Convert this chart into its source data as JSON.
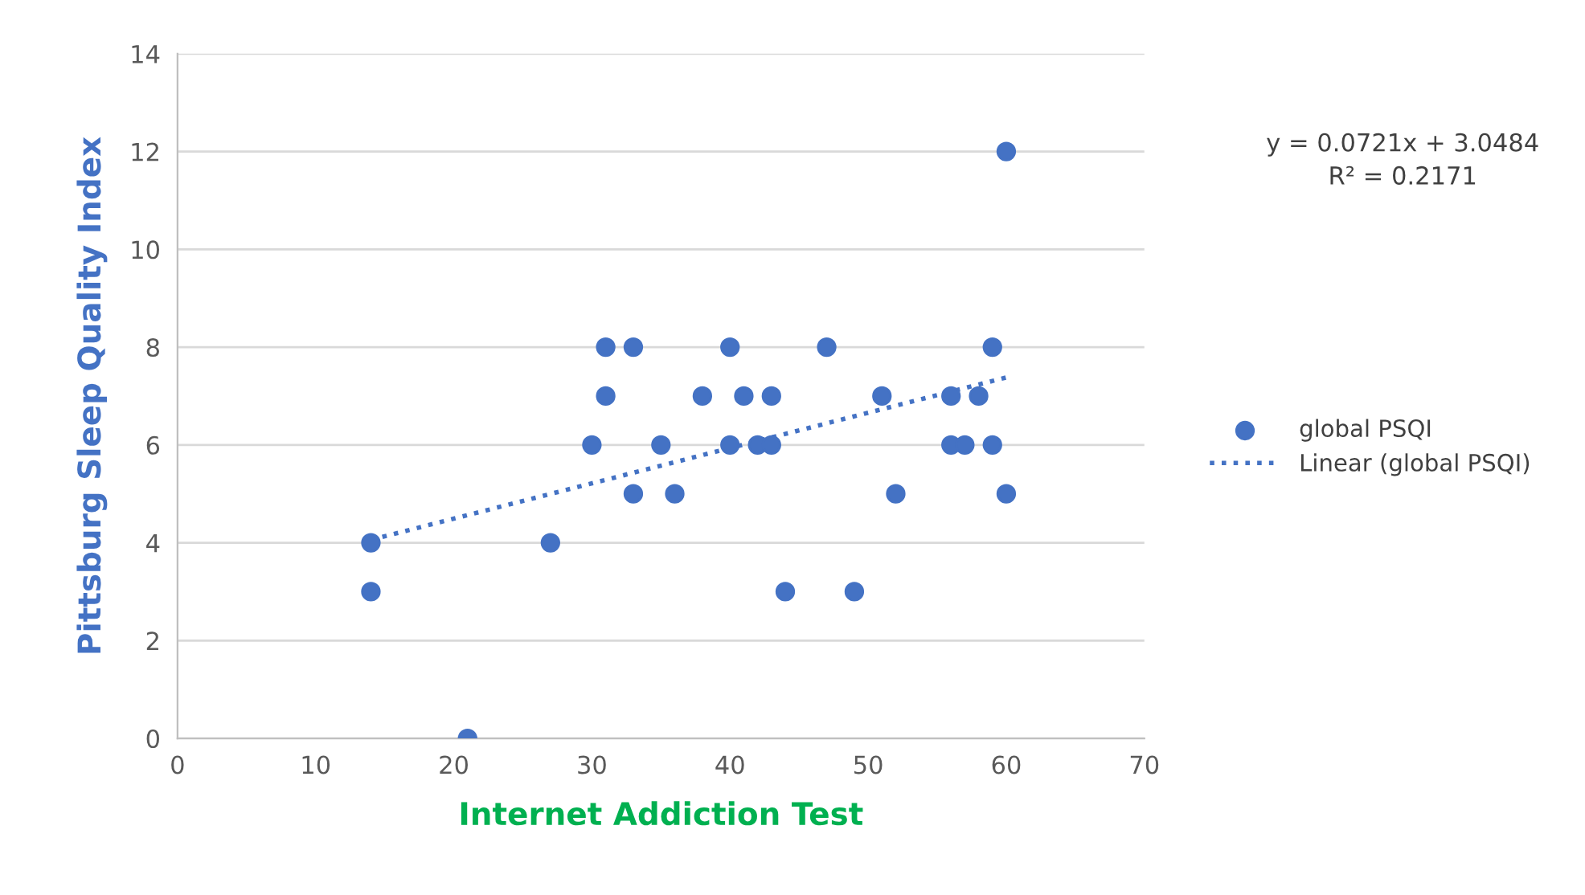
{
  "chart_data": {
    "type": "scatter",
    "xlabel": "Internet Addiction Test",
    "ylabel": "Pittsburg Sleep Quality Index",
    "xlim": [
      0,
      70
    ],
    "xticks": [
      0,
      10,
      20,
      30,
      40,
      50,
      60,
      70
    ],
    "ylim": [
      0,
      14
    ],
    "yticks": [
      0,
      2,
      4,
      6,
      8,
      10,
      12,
      14
    ],
    "grid": "y",
    "legend": "right",
    "series": [
      {
        "name": "global PSQI",
        "marker": "circle",
        "color": "#4472c4",
        "x": [
          14,
          14,
          21,
          27,
          30,
          31,
          31,
          33,
          33,
          35,
          36,
          38,
          40,
          40,
          41,
          42,
          43,
          43,
          44,
          47,
          49,
          51,
          52,
          56,
          56,
          57,
          58,
          59,
          59,
          60,
          60
        ],
        "values": [
          4,
          3,
          0,
          4,
          6,
          8,
          7,
          8,
          5,
          6,
          5,
          7,
          8,
          6,
          7,
          6,
          7,
          6,
          3,
          8,
          3,
          7,
          5,
          7,
          6,
          6,
          7,
          8,
          6,
          5,
          12
        ]
      },
      {
        "name": "Linear (global PSQI)",
        "type": "line",
        "line_style": "dotted",
        "color": "#4472c4",
        "x": [
          14,
          60
        ],
        "values": [
          4.06,
          7.38
        ]
      }
    ],
    "annotations": [
      "y = 0.0721x + 3.0484\nR² = 0.2171"
    ]
  }
}
